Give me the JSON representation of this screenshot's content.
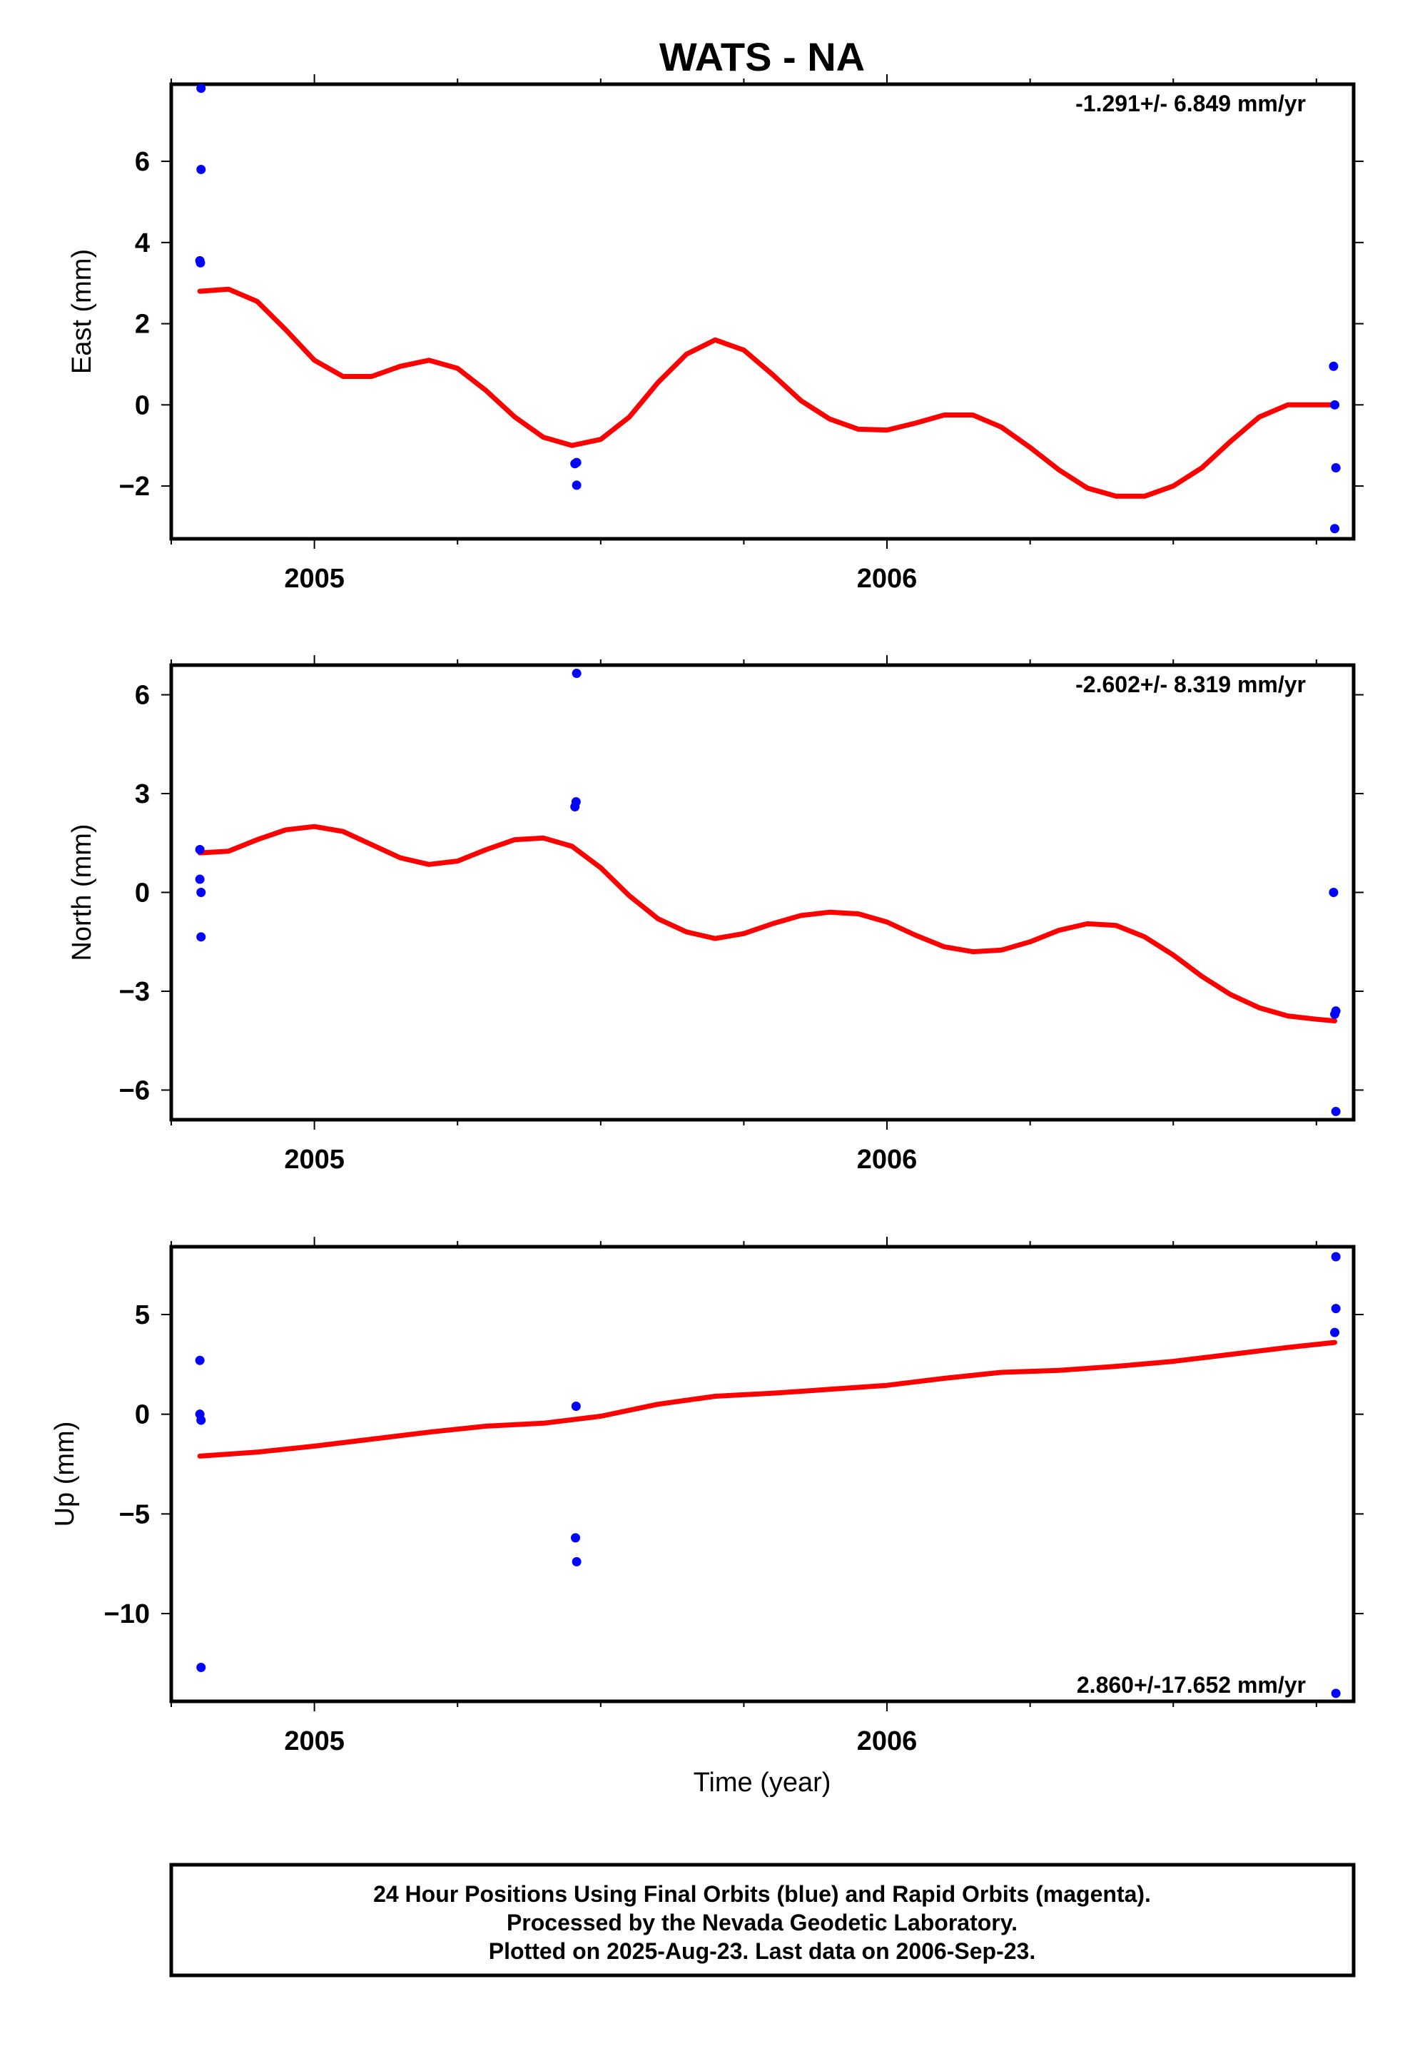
{
  "title": "WATS - NA",
  "xlabel": "Time (year)",
  "footer": {
    "line1": "24 Hour Positions Using Final Orbits (blue) and Rapid Orbits (magenta).",
    "line2": "Processed by the Nevada Geodetic Laboratory.",
    "line3": "Plotted on 2025-Aug-23. Last data on 2006-Sep-23."
  },
  "colors": {
    "final_orbits": "#0000ff",
    "fit_curve": "#ff0000",
    "frame": "#000000"
  },
  "chart_data": [
    {
      "type": "scatter",
      "panel": "east",
      "ylabel": "East (mm)",
      "rate": "-1.291+/- 6.849 mm/yr",
      "xlim": [
        2004.75,
        2006.815
      ],
      "ylim": [
        -3.3,
        7.9
      ],
      "x_ticks": [
        2005,
        2006
      ],
      "x_tick_labels": [
        "2005",
        "2006"
      ],
      "y_ticks": [
        -2,
        0,
        2,
        4,
        6
      ],
      "y_tick_labels": [
        "−2",
        "0",
        "2",
        "4",
        "6"
      ],
      "points": [
        [
          2004.802,
          7.8
        ],
        [
          2004.802,
          5.8
        ],
        [
          2004.8,
          3.55
        ],
        [
          2004.801,
          3.5
        ],
        [
          2005.455,
          -1.45
        ],
        [
          2005.458,
          -1.42
        ],
        [
          2005.458,
          -1.98
        ],
        [
          2006.78,
          0.95
        ],
        [
          2006.782,
          0.0
        ],
        [
          2006.784,
          -1.55
        ],
        [
          2006.782,
          -3.05
        ]
      ],
      "fit": [
        [
          2004.8,
          2.8
        ],
        [
          2004.85,
          2.85
        ],
        [
          2004.9,
          2.55
        ],
        [
          2004.95,
          1.85
        ],
        [
          2005.0,
          1.1
        ],
        [
          2005.05,
          0.7
        ],
        [
          2005.1,
          0.7
        ],
        [
          2005.15,
          0.95
        ],
        [
          2005.2,
          1.1
        ],
        [
          2005.25,
          0.9
        ],
        [
          2005.3,
          0.35
        ],
        [
          2005.35,
          -0.3
        ],
        [
          2005.4,
          -0.8
        ],
        [
          2005.45,
          -1.0
        ],
        [
          2005.5,
          -0.85
        ],
        [
          2005.55,
          -0.3
        ],
        [
          2005.6,
          0.55
        ],
        [
          2005.65,
          1.25
        ],
        [
          2005.7,
          1.6
        ],
        [
          2005.75,
          1.35
        ],
        [
          2005.8,
          0.75
        ],
        [
          2005.85,
          0.1
        ],
        [
          2005.9,
          -0.35
        ],
        [
          2005.95,
          -0.6
        ],
        [
          2006.0,
          -0.62
        ],
        [
          2006.05,
          -0.45
        ],
        [
          2006.1,
          -0.25
        ],
        [
          2006.15,
          -0.25
        ],
        [
          2006.2,
          -0.55
        ],
        [
          2006.25,
          -1.05
        ],
        [
          2006.3,
          -1.6
        ],
        [
          2006.35,
          -2.05
        ],
        [
          2006.4,
          -2.25
        ],
        [
          2006.45,
          -2.25
        ],
        [
          2006.5,
          -2.0
        ],
        [
          2006.55,
          -1.55
        ],
        [
          2006.6,
          -0.9
        ],
        [
          2006.65,
          -0.3
        ],
        [
          2006.7,
          0.0
        ],
        [
          2006.75,
          0.0
        ],
        [
          2006.782,
          0.0
        ]
      ]
    },
    {
      "type": "scatter",
      "panel": "north",
      "ylabel": "North (mm)",
      "rate": "-2.602+/- 8.319 mm/yr",
      "xlim": [
        2004.75,
        2006.815
      ],
      "ylim": [
        -6.9,
        6.9
      ],
      "x_ticks": [
        2005,
        2006
      ],
      "x_tick_labels": [
        "2005",
        "2006"
      ],
      "y_ticks": [
        -6,
        -3,
        0,
        3,
        6
      ],
      "y_tick_labels": [
        "−6",
        "−3",
        "0",
        "3",
        "6"
      ],
      "points": [
        [
          2004.8,
          1.3
        ],
        [
          2004.8,
          0.4
        ],
        [
          2004.802,
          0.0
        ],
        [
          2004.802,
          -1.35
        ],
        [
          2005.455,
          2.6
        ],
        [
          2005.457,
          2.75
        ],
        [
          2005.458,
          6.65
        ],
        [
          2006.78,
          0.0
        ],
        [
          2006.784,
          -3.6
        ],
        [
          2006.782,
          -3.7
        ],
        [
          2006.784,
          -6.65
        ]
      ],
      "fit": [
        [
          2004.8,
          1.2
        ],
        [
          2004.85,
          1.25
        ],
        [
          2004.9,
          1.6
        ],
        [
          2004.95,
          1.9
        ],
        [
          2005.0,
          2.0
        ],
        [
          2005.05,
          1.85
        ],
        [
          2005.1,
          1.45
        ],
        [
          2005.15,
          1.05
        ],
        [
          2005.2,
          0.85
        ],
        [
          2005.25,
          0.95
        ],
        [
          2005.3,
          1.3
        ],
        [
          2005.35,
          1.6
        ],
        [
          2005.4,
          1.65
        ],
        [
          2005.45,
          1.4
        ],
        [
          2005.5,
          0.75
        ],
        [
          2005.55,
          -0.1
        ],
        [
          2005.6,
          -0.8
        ],
        [
          2005.65,
          -1.2
        ],
        [
          2005.7,
          -1.4
        ],
        [
          2005.75,
          -1.25
        ],
        [
          2005.8,
          -0.95
        ],
        [
          2005.85,
          -0.7
        ],
        [
          2005.9,
          -0.6
        ],
        [
          2005.95,
          -0.65
        ],
        [
          2006.0,
          -0.9
        ],
        [
          2006.05,
          -1.3
        ],
        [
          2006.1,
          -1.65
        ],
        [
          2006.15,
          -1.8
        ],
        [
          2006.2,
          -1.75
        ],
        [
          2006.25,
          -1.5
        ],
        [
          2006.3,
          -1.15
        ],
        [
          2006.35,
          -0.95
        ],
        [
          2006.4,
          -1.0
        ],
        [
          2006.45,
          -1.35
        ],
        [
          2006.5,
          -1.9
        ],
        [
          2006.55,
          -2.55
        ],
        [
          2006.6,
          -3.1
        ],
        [
          2006.65,
          -3.5
        ],
        [
          2006.7,
          -3.75
        ],
        [
          2006.75,
          -3.85
        ],
        [
          2006.782,
          -3.9
        ]
      ]
    },
    {
      "type": "scatter",
      "panel": "up",
      "ylabel": "Up (mm)",
      "rate": "2.860+/-17.652 mm/yr",
      "xlim": [
        2004.75,
        2006.815
      ],
      "ylim": [
        -14.4,
        8.4
      ],
      "x_ticks": [
        2005,
        2006
      ],
      "x_tick_labels": [
        "2005",
        "2006"
      ],
      "y_ticks": [
        -10,
        -5,
        0,
        5
      ],
      "y_tick_labels": [
        "−10",
        "−5",
        "0",
        "5"
      ],
      "points": [
        [
          2004.8,
          2.7
        ],
        [
          2004.8,
          0.0
        ],
        [
          2004.802,
          -0.3
        ],
        [
          2004.802,
          -12.7
        ],
        [
          2005.457,
          0.4
        ],
        [
          2005.456,
          -6.2
        ],
        [
          2005.458,
          -7.4
        ],
        [
          2006.784,
          7.9
        ],
        [
          2006.784,
          5.3
        ],
        [
          2006.782,
          4.1
        ],
        [
          2006.784,
          -14.0
        ]
      ],
      "fit": [
        [
          2004.8,
          -2.1
        ],
        [
          2004.9,
          -1.9
        ],
        [
          2005.0,
          -1.6
        ],
        [
          2005.1,
          -1.25
        ],
        [
          2005.2,
          -0.9
        ],
        [
          2005.3,
          -0.6
        ],
        [
          2005.4,
          -0.45
        ],
        [
          2005.5,
          -0.1
        ],
        [
          2005.6,
          0.5
        ],
        [
          2005.7,
          0.9
        ],
        [
          2005.8,
          1.05
        ],
        [
          2005.9,
          1.25
        ],
        [
          2006.0,
          1.45
        ],
        [
          2006.1,
          1.8
        ],
        [
          2006.2,
          2.1
        ],
        [
          2006.3,
          2.2
        ],
        [
          2006.4,
          2.4
        ],
        [
          2006.5,
          2.65
        ],
        [
          2006.6,
          3.0
        ],
        [
          2006.7,
          3.35
        ],
        [
          2006.782,
          3.6
        ]
      ]
    }
  ]
}
